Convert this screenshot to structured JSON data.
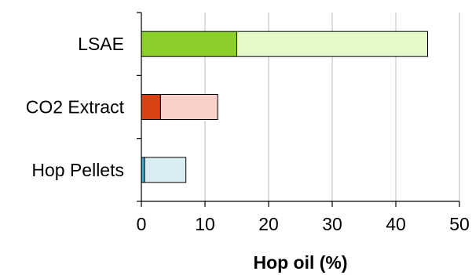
{
  "chart_data": {
    "type": "bar",
    "orientation": "horizontal",
    "stacked": true,
    "categories": [
      "LSAE",
      "CO2 Extract",
      "Hop Pellets"
    ],
    "xlabel": "Hop oil (%)",
    "ylabel": "",
    "xlim": [
      0,
      50
    ],
    "xticks": [
      "0",
      "10",
      "20",
      "30",
      "40",
      "50"
    ],
    "grid": "vertical",
    "legend": "none",
    "bars": [
      {
        "category": "LSAE",
        "low": 15,
        "high": 45,
        "low_color": "#8ccf2b",
        "high_color": "#e6f9c9"
      },
      {
        "category": "CO2 Extract",
        "low": 3,
        "high": 12,
        "low_color": "#d84315",
        "high_color": "#fbd0cb"
      },
      {
        "category": "Hop Pellets",
        "low": 0.5,
        "high": 7,
        "low_color": "#3fa7c9",
        "high_color": "#d8ecf2"
      }
    ]
  }
}
